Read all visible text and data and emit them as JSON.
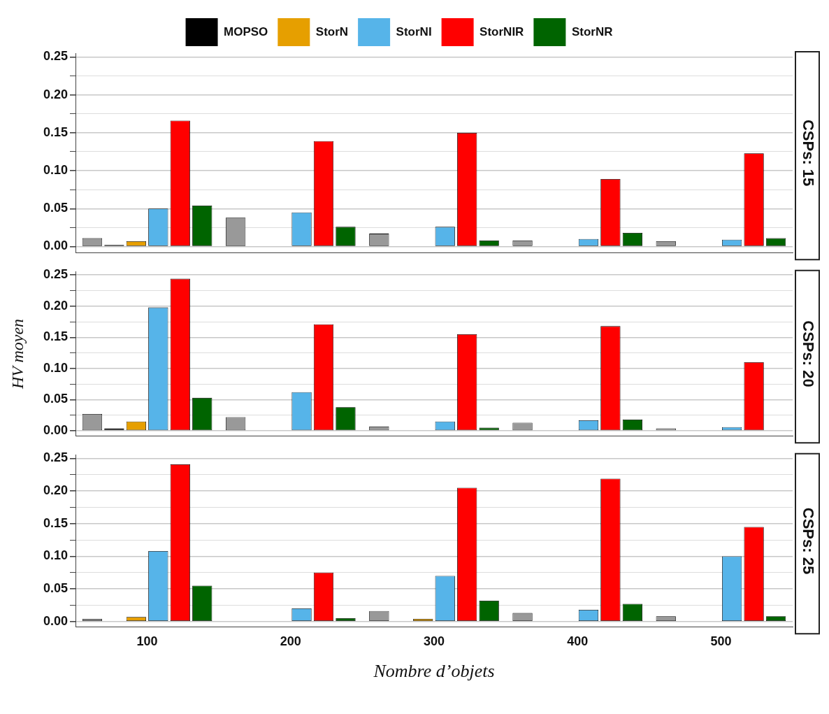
{
  "chart_data": [
    {
      "type": "bar",
      "title": "CSPs: 15",
      "categories": [
        "100",
        "200",
        "300",
        "400",
        "500"
      ],
      "legend": "top",
      "tick_labels": "y",
      "grid": "y",
      "ylim": [
        -0.008,
        0.255
      ],
      "yticks": [
        {
          "value": 0,
          "label": "0.00"
        },
        {
          "value": 0.025,
          "label": null
        },
        {
          "value": 0.05,
          "label": "0.05"
        },
        {
          "value": 0.075,
          "label": null
        },
        {
          "value": 0.1,
          "label": "0.10"
        },
        {
          "value": 0.125,
          "label": null
        },
        {
          "value": 0.15,
          "label": "0.15"
        },
        {
          "value": 0.175,
          "label": null
        },
        {
          "value": 0.2,
          "label": "0.20"
        },
        {
          "value": 0.225,
          "label": null
        },
        {
          "value": 0.25,
          "label": "0.25"
        }
      ],
      "series": [
        {
          "color": "#999999",
          "values": [
            0.011,
            0.038,
            0.017,
            0.008,
            0.007
          ]
        },
        {
          "name": "MOPSO",
          "color": "#000000",
          "values": [
            0.002,
            0,
            0,
            0,
            0
          ]
        },
        {
          "name": "StorN",
          "color": "#e69f00",
          "values": [
            0.007,
            0,
            0,
            0,
            0
          ]
        },
        {
          "name": "StorNI",
          "color": "#56b4e9",
          "values": [
            0.05,
            0.045,
            0.026,
            0.01,
            0.009
          ]
        },
        {
          "name": "StorNIR",
          "color": "#ff0000",
          "values": [
            0.166,
            0.139,
            0.15,
            0.089,
            0.123
          ]
        },
        {
          "name": "StorNR",
          "color": "#006400",
          "values": [
            0.054,
            0.026,
            0.008,
            0.018,
            0.011
          ]
        }
      ]
    },
    {
      "type": "bar",
      "title": "CSPs: 20",
      "ylabel": "HV moyen",
      "categories": [
        "100",
        "200",
        "300",
        "400",
        "500"
      ],
      "tick_labels": "y",
      "grid": "y",
      "ylim": [
        -0.008,
        0.255
      ],
      "yticks": [
        {
          "value": 0,
          "label": "0.00"
        },
        {
          "value": 0.025,
          "label": null
        },
        {
          "value": 0.05,
          "label": "0.05"
        },
        {
          "value": 0.075,
          "label": null
        },
        {
          "value": 0.1,
          "label": "0.10"
        },
        {
          "value": 0.125,
          "label": null
        },
        {
          "value": 0.15,
          "label": "0.15"
        },
        {
          "value": 0.175,
          "label": null
        },
        {
          "value": 0.2,
          "label": "0.20"
        },
        {
          "value": 0.225,
          "label": null
        },
        {
          "value": 0.25,
          "label": "0.25"
        }
      ],
      "series": [
        {
          "color": "#999999",
          "values": [
            0.027,
            0.022,
            0.007,
            0.013,
            0.004
          ]
        },
        {
          "color": "#000000",
          "values": [
            0.004,
            0,
            0,
            0,
            0
          ]
        },
        {
          "color": "#e69f00",
          "values": [
            0.015,
            0,
            0,
            0,
            0
          ]
        },
        {
          "color": "#56b4e9",
          "values": [
            0.198,
            0.062,
            0.015,
            0.017,
            0.006
          ]
        },
        {
          "color": "#ff0000",
          "values": [
            0.244,
            0.171,
            0.155,
            0.168,
            0.11
          ]
        },
        {
          "color": "#006400",
          "values": [
            0.053,
            0.038,
            0.005,
            0.018,
            0
          ]
        }
      ]
    },
    {
      "type": "bar",
      "title": "CSPs: 25",
      "xlabel": "Nombre d’objets",
      "categories": [
        "100",
        "200",
        "300",
        "400",
        "500"
      ],
      "grid": "y",
      "ylim": [
        -0.008,
        0.255
      ],
      "yticks": [
        {
          "value": 0,
          "label": "0.00"
        },
        {
          "value": 0.025,
          "label": null
        },
        {
          "value": 0.05,
          "label": "0.05"
        },
        {
          "value": 0.075,
          "label": null
        },
        {
          "value": 0.1,
          "label": "0.10"
        },
        {
          "value": 0.125,
          "label": null
        },
        {
          "value": 0.15,
          "label": "0.15"
        },
        {
          "value": 0.175,
          "label": null
        },
        {
          "value": 0.2,
          "label": "0.20"
        },
        {
          "value": 0.225,
          "label": null
        },
        {
          "value": 0.25,
          "label": "0.25"
        }
      ],
      "series": [
        {
          "color": "#999999",
          "values": [
            0.004,
            0,
            0.016,
            0.013,
            0.008
          ]
        },
        {
          "color": "#000000",
          "values": [
            0,
            0,
            0,
            0,
            0
          ]
        },
        {
          "color": "#e69f00",
          "values": [
            0.007,
            0,
            0.004,
            0,
            0
          ]
        },
        {
          "color": "#56b4e9",
          "values": [
            0.108,
            0.02,
            0.07,
            0.018,
            0.1
          ]
        },
        {
          "color": "#ff0000",
          "values": [
            0.241,
            0.075,
            0.205,
            0.219,
            0.145
          ]
        },
        {
          "color": "#006400",
          "values": [
            0.055,
            0.005,
            0.032,
            0.027,
            0.008
          ]
        }
      ]
    }
  ]
}
